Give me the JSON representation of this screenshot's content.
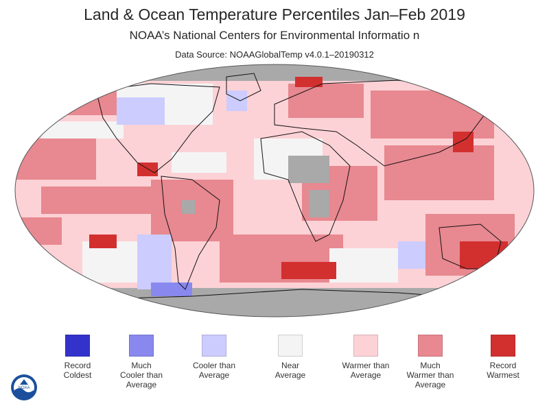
{
  "header": {
    "title": "Land & Ocean Temperature Percentiles Jan–Feb 2019",
    "subtitle": "NOAA’s National Centers for Environmental Informatio n",
    "source": "Data Source: NOAAGlobalTemp v4.0.1–20190312"
  },
  "legend": [
    {
      "line1": "Record",
      "line2": "Coldest",
      "line3": "",
      "color": "#3333cc"
    },
    {
      "line1": "Much",
      "line2": "Cooler than",
      "line3": "Average",
      "color": "#8888ee"
    },
    {
      "line1": "Cooler than",
      "line2": "Average",
      "line3": "",
      "color": "#ccccff"
    },
    {
      "line1": "Near",
      "line2": "Average",
      "line3": "",
      "color": "#f4f4f4"
    },
    {
      "line1": "Warmer than",
      "line2": "Average",
      "line3": "",
      "color": "#fcd2d6"
    },
    {
      "line1": "Much",
      "line2": "Warmer than",
      "line3": "Average",
      "color": "#e88890"
    },
    {
      "line1": "Record",
      "line2": "Warmest",
      "line3": "",
      "color": "#d2302f"
    }
  ],
  "map_colors": {
    "missing": "#a9a9a9",
    "near": "#f4f4f4",
    "warm": "#fcd2d6",
    "much_warm": "#e88890",
    "record_warm": "#d2302f",
    "cool": "#ccccff",
    "much_cool": "#8888ee",
    "record_cold": "#3333cc",
    "coast": "#111111"
  },
  "logo": {
    "icon": "noaa-logo-icon",
    "text": "NOAA"
  }
}
